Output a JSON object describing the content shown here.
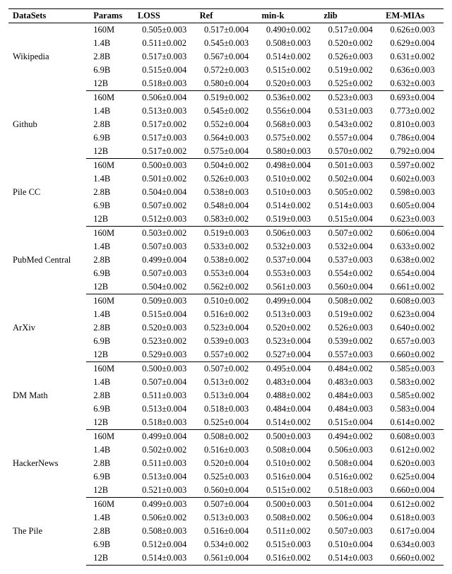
{
  "columns": [
    "DataSets",
    "Params",
    "LOSS",
    "Ref",
    "min-k",
    "zlib",
    "EM-MIAs"
  ],
  "groups": [
    {
      "dataset": "Wikipedia",
      "rows": [
        {
          "params": "160M",
          "loss": "0.505±0.003",
          "ref": "0.517±0.004",
          "mink": "0.490±0.002",
          "zlib": "0.517±0.004",
          "em": "0.626±0.003"
        },
        {
          "params": "1.4B",
          "loss": "0.511±0.002",
          "ref": "0.545±0.003",
          "mink": "0.508±0.003",
          "zlib": "0.520±0.002",
          "em": "0.629±0.004"
        },
        {
          "params": "2.8B",
          "loss": "0.517±0.003",
          "ref": "0.567±0.004",
          "mink": "0.514±0.002",
          "zlib": "0.526±0.003",
          "em": "0.631±0.002"
        },
        {
          "params": "6.9B",
          "loss": "0.515±0.004",
          "ref": "0.572±0.003",
          "mink": "0.515±0.002",
          "zlib": "0.519±0.002",
          "em": "0.636±0.003"
        },
        {
          "params": "12B",
          "loss": "0.518±0.003",
          "ref": "0.580±0.004",
          "mink": "0.520±0.003",
          "zlib": "0.525±0.002",
          "em": "0.632±0.003"
        }
      ]
    },
    {
      "dataset": "Github",
      "rows": [
        {
          "params": "160M",
          "loss": "0.506±0.004",
          "ref": "0.519±0.002",
          "mink": "0.536±0.002",
          "zlib": "0.523±0.003",
          "em": "0.693±0.004"
        },
        {
          "params": "1.4B",
          "loss": "0.513±0.003",
          "ref": "0.545±0.002",
          "mink": "0.556±0.004",
          "zlib": "0.531±0.003",
          "em": "0.773±0.002"
        },
        {
          "params": "2.8B",
          "loss": "0.517±0.002",
          "ref": "0.552±0.004",
          "mink": "0.568±0.003",
          "zlib": "0.543±0.002",
          "em": "0.810±0.003"
        },
        {
          "params": "6.9B",
          "loss": "0.517±0.003",
          "ref": "0.564±0.003",
          "mink": "0.575±0.002",
          "zlib": "0.557±0.004",
          "em": "0.786±0.004"
        },
        {
          "params": "12B",
          "loss": "0.517±0.002",
          "ref": "0.575±0.004",
          "mink": "0.580±0.003",
          "zlib": "0.570±0.002",
          "em": "0.792±0.004"
        }
      ]
    },
    {
      "dataset": "Pile CC",
      "rows": [
        {
          "params": "160M",
          "loss": "0.500±0.003",
          "ref": "0.504±0.002",
          "mink": "0.498±0.004",
          "zlib": "0.501±0.003",
          "em": "0.597±0.002"
        },
        {
          "params": "1.4B",
          "loss": "0.501±0.002",
          "ref": "0.526±0.003",
          "mink": "0.510±0.002",
          "zlib": "0.502±0.004",
          "em": "0.602±0.003"
        },
        {
          "params": "2.8B",
          "loss": "0.504±0.004",
          "ref": "0.538±0.003",
          "mink": "0.510±0.003",
          "zlib": "0.505±0.002",
          "em": "0.598±0.003"
        },
        {
          "params": "6.9B",
          "loss": "0.507±0.002",
          "ref": "0.548±0.004",
          "mink": "0.514±0.002",
          "zlib": "0.514±0.003",
          "em": "0.605±0.004"
        },
        {
          "params": "12B",
          "loss": "0.512±0.003",
          "ref": "0.583±0.002",
          "mink": "0.519±0.003",
          "zlib": "0.515±0.004",
          "em": "0.623±0.003"
        }
      ]
    },
    {
      "dataset": "PubMed Central",
      "rows": [
        {
          "params": "160M",
          "loss": "0.503±0.002",
          "ref": "0.519±0.003",
          "mink": "0.506±0.003",
          "zlib": "0.507±0.002",
          "em": "0.606±0.004"
        },
        {
          "params": "1.4B",
          "loss": "0.507±0.003",
          "ref": "0.533±0.002",
          "mink": "0.532±0.003",
          "zlib": "0.532±0.004",
          "em": "0.633±0.002"
        },
        {
          "params": "2.8B",
          "loss": "0.499±0.004",
          "ref": "0.538±0.002",
          "mink": "0.537±0.004",
          "zlib": "0.537±0.003",
          "em": "0.638±0.002"
        },
        {
          "params": "6.9B",
          "loss": "0.507±0.003",
          "ref": "0.553±0.004",
          "mink": "0.553±0.003",
          "zlib": "0.554±0.002",
          "em": "0.654±0.004"
        },
        {
          "params": "12B",
          "loss": "0.504±0.002",
          "ref": "0.562±0.002",
          "mink": "0.561±0.003",
          "zlib": "0.560±0.004",
          "em": "0.661±0.002"
        }
      ]
    },
    {
      "dataset": "ArXiv",
      "rows": [
        {
          "params": "160M",
          "loss": "0.509±0.003",
          "ref": "0.510±0.002",
          "mink": "0.499±0.004",
          "zlib": "0.508±0.002",
          "em": "0.608±0.003"
        },
        {
          "params": "1.4B",
          "loss": "0.515±0.004",
          "ref": "0.516±0.002",
          "mink": "0.513±0.003",
          "zlib": "0.519±0.002",
          "em": "0.623±0.004"
        },
        {
          "params": "2.8B",
          "loss": "0.520±0.003",
          "ref": "0.523±0.004",
          "mink": "0.520±0.002",
          "zlib": "0.526±0.003",
          "em": "0.640±0.002"
        },
        {
          "params": "6.9B",
          "loss": "0.523±0.002",
          "ref": "0.539±0.003",
          "mink": "0.523±0.004",
          "zlib": "0.539±0.002",
          "em": "0.657±0.003"
        },
        {
          "params": "12B",
          "loss": "0.529±0.003",
          "ref": "0.557±0.002",
          "mink": "0.527±0.004",
          "zlib": "0.557±0.003",
          "em": "0.660±0.002"
        }
      ]
    },
    {
      "dataset": "DM Math",
      "rows": [
        {
          "params": "160M",
          "loss": "0.500±0.003",
          "ref": "0.507±0.002",
          "mink": "0.495±0.004",
          "zlib": "0.484±0.002",
          "em": "0.585±0.003"
        },
        {
          "params": "1.4B",
          "loss": "0.507±0.004",
          "ref": "0.513±0.002",
          "mink": "0.483±0.004",
          "zlib": "0.483±0.003",
          "em": "0.583±0.002"
        },
        {
          "params": "2.8B",
          "loss": "0.511±0.003",
          "ref": "0.513±0.004",
          "mink": "0.488±0.002",
          "zlib": "0.484±0.003",
          "em": "0.585±0.002"
        },
        {
          "params": "6.9B",
          "loss": "0.513±0.004",
          "ref": "0.518±0.003",
          "mink": "0.484±0.004",
          "zlib": "0.484±0.003",
          "em": "0.583±0.004"
        },
        {
          "params": "12B",
          "loss": "0.518±0.003",
          "ref": "0.525±0.004",
          "mink": "0.514±0.002",
          "zlib": "0.515±0.004",
          "em": "0.614±0.002"
        }
      ]
    },
    {
      "dataset": "HackerNews",
      "rows": [
        {
          "params": "160M",
          "loss": "0.499±0.004",
          "ref": "0.508±0.002",
          "mink": "0.500±0.003",
          "zlib": "0.494±0.002",
          "em": "0.608±0.003"
        },
        {
          "params": "1.4B",
          "loss": "0.502±0.002",
          "ref": "0.516±0.003",
          "mink": "0.508±0.004",
          "zlib": "0.506±0.003",
          "em": "0.612±0.002"
        },
        {
          "params": "2.8B",
          "loss": "0.511±0.003",
          "ref": "0.520±0.004",
          "mink": "0.510±0.002",
          "zlib": "0.508±0.004",
          "em": "0.620±0.003"
        },
        {
          "params": "6.9B",
          "loss": "0.513±0.004",
          "ref": "0.525±0.003",
          "mink": "0.516±0.004",
          "zlib": "0.516±0.002",
          "em": "0.625±0.004"
        },
        {
          "params": "12B",
          "loss": "0.521±0.003",
          "ref": "0.560±0.004",
          "mink": "0.515±0.002",
          "zlib": "0.518±0.003",
          "em": "0.660±0.004"
        }
      ]
    },
    {
      "dataset": "The Pile",
      "rows": [
        {
          "params": "160M",
          "loss": "0.499±0.003",
          "ref": "0.507±0.004",
          "mink": "0.500±0.003",
          "zlib": "0.501±0.004",
          "em": "0.612±0.002"
        },
        {
          "params": "1.4B",
          "loss": "0.506±0.002",
          "ref": "0.513±0.003",
          "mink": "0.508±0.002",
          "zlib": "0.506±0.004",
          "em": "0.618±0.003"
        },
        {
          "params": "2.8B",
          "loss": "0.508±0.003",
          "ref": "0.516±0.004",
          "mink": "0.511±0.002",
          "zlib": "0.507±0.003",
          "em": "0.617±0.004"
        },
        {
          "params": "6.9B",
          "loss": "0.512±0.004",
          "ref": "0.534±0.002",
          "mink": "0.515±0.003",
          "zlib": "0.510±0.004",
          "em": "0.634±0.003"
        },
        {
          "params": "12B",
          "loss": "0.514±0.003",
          "ref": "0.561±0.004",
          "mink": "0.516±0.002",
          "zlib": "0.514±0.003",
          "em": "0.660±0.002"
        }
      ]
    }
  ]
}
